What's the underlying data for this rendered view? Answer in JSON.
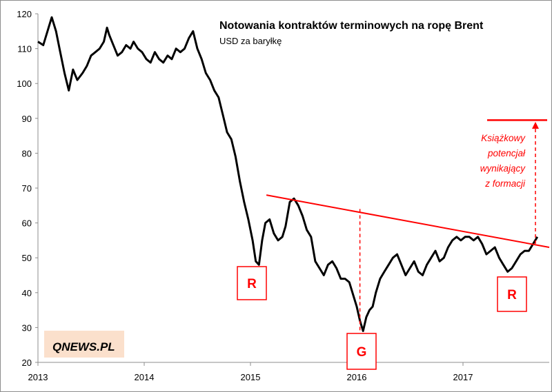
{
  "chart_data": {
    "type": "line",
    "title": "Notowania kontraktów terminowych na ropę Brent",
    "subtitle": "USD za baryłkę",
    "x_ticks": [
      "2013",
      "2014",
      "2015",
      "2016",
      "2017"
    ],
    "y_ticks": [
      "20",
      "30",
      "40",
      "50",
      "60",
      "70",
      "80",
      "90",
      "100",
      "110",
      "120"
    ],
    "xlim": [
      2013.0,
      2017.8
    ],
    "ylim": [
      20,
      120
    ],
    "series": [
      {
        "x": [
          2013.0,
          2013.05,
          2013.1,
          2013.13,
          2013.17,
          2013.21,
          2013.25,
          2013.29,
          2013.33,
          2013.37,
          2013.42,
          2013.46,
          2013.5,
          2013.54,
          2013.58,
          2013.62,
          2013.65,
          2013.67,
          2013.71,
          2013.75,
          2013.79,
          2013.83,
          2013.87,
          2013.9,
          2013.94,
          2013.98,
          2014.02,
          2014.06,
          2014.1,
          2014.14,
          2014.18,
          2014.22,
          2014.26,
          2014.3,
          2014.34,
          2014.38,
          2014.42,
          2014.46,
          2014.5,
          2014.54,
          2014.58,
          2014.62,
          2014.66,
          2014.7,
          2014.74,
          2014.78,
          2014.82,
          2014.86,
          2014.9,
          2014.94,
          2014.98,
          2015.02,
          2015.05,
          2015.08,
          2015.11,
          2015.14,
          2015.18,
          2015.22,
          2015.26,
          2015.3,
          2015.33,
          2015.37,
          2015.41,
          2015.45,
          2015.49,
          2015.53,
          2015.57,
          2015.61,
          2015.65,
          2015.69,
          2015.73,
          2015.77,
          2015.81,
          2015.85,
          2015.89,
          2015.93,
          2015.97,
          2016.0,
          2016.03,
          2016.06,
          2016.09,
          2016.12,
          2016.15,
          2016.18,
          2016.22,
          2016.26,
          2016.3,
          2016.34,
          2016.38,
          2016.42,
          2016.46,
          2016.5,
          2016.54,
          2016.58,
          2016.62,
          2016.66,
          2016.7,
          2016.74,
          2016.78,
          2016.82,
          2016.86,
          2016.9,
          2016.94,
          2016.98,
          2017.02,
          2017.06,
          2017.1,
          2017.14,
          2017.18,
          2017.22,
          2017.26,
          2017.3,
          2017.34,
          2017.38,
          2017.42,
          2017.46,
          2017.5,
          2017.54,
          2017.58,
          2017.62,
          2017.66,
          2017.7
        ],
        "values": [
          112,
          111,
          116,
          119,
          115,
          109,
          103,
          98,
          104,
          101,
          103,
          105,
          108,
          109,
          110,
          112,
          116,
          114,
          111,
          108,
          109,
          111,
          110,
          112,
          110,
          109,
          107,
          106,
          109,
          107,
          106,
          108,
          107,
          110,
          109,
          110,
          113,
          115,
          110,
          107,
          103,
          101,
          98,
          96,
          91,
          86,
          84,
          79,
          72,
          66,
          61,
          55,
          49,
          48,
          55,
          60,
          61,
          57,
          55,
          56,
          59,
          66,
          67,
          65,
          62,
          58,
          56,
          49,
          47,
          45,
          48,
          49,
          47,
          44,
          44,
          43,
          39,
          36,
          32,
          29,
          33,
          35,
          36,
          40,
          44,
          46,
          48,
          50,
          51,
          48,
          45,
          47,
          49,
          46,
          45,
          48,
          50,
          52,
          49,
          50,
          53,
          55,
          56,
          55,
          56,
          56,
          55,
          56,
          54,
          51,
          52,
          53,
          50,
          48,
          46,
          47,
          49,
          51,
          52,
          52,
          54,
          56
        ]
      }
    ],
    "annotations": {
      "label_text": "Książkowy\npotencjał\nwynikający\nz formacji",
      "boxes": [
        "R",
        "G",
        "R"
      ],
      "neckline": {
        "x": [
          2015.15,
          2017.8
        ],
        "y": [
          68,
          53
        ]
      },
      "g_drop": {
        "x": 2016.03,
        "y": [
          64,
          29
        ]
      },
      "target_level": {
        "x": [
          2017.5,
          2017.8
        ],
        "y": 89.5
      },
      "target_arrow": {
        "x": 2017.66,
        "y": [
          54,
          89
        ]
      }
    },
    "colors": {
      "line": "#000000",
      "annotation": "#ff0000",
      "axis": "#8c8c8c",
      "logo_bg": "#fbe0cc"
    }
  },
  "logo": {
    "text": "QNEWS.PL"
  }
}
